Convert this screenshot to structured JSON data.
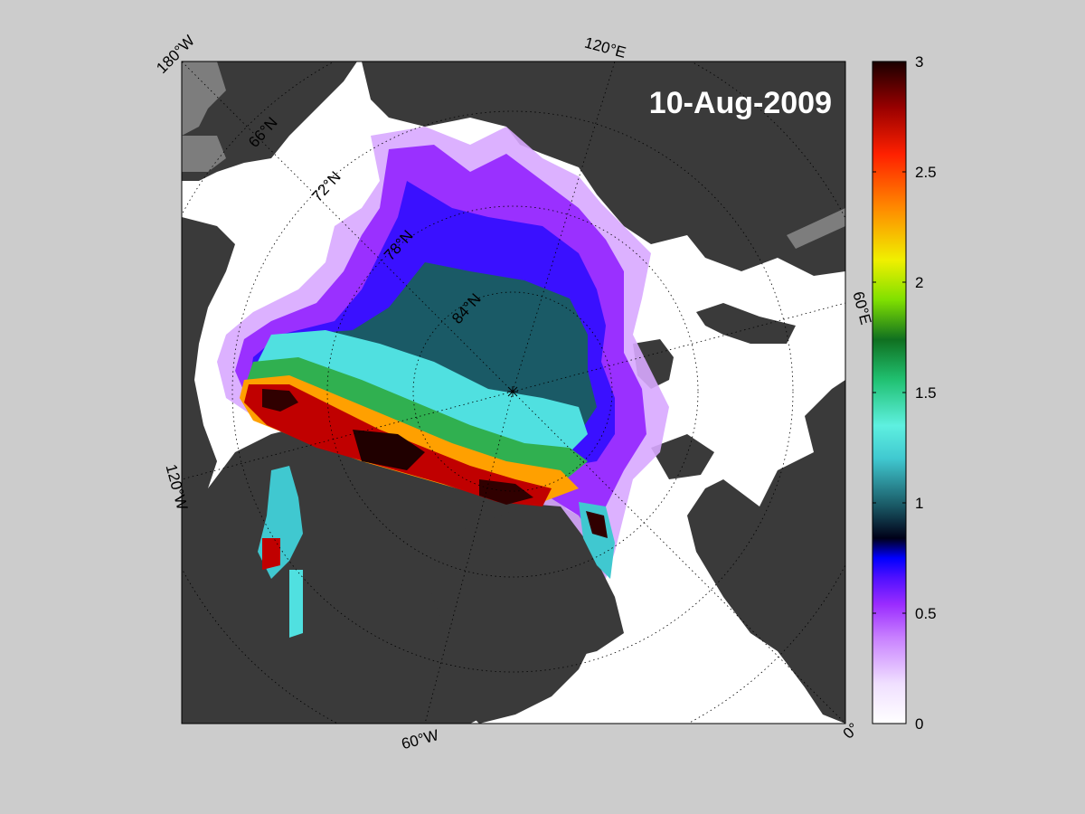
{
  "map": {
    "date_label": "10-Aug-2009",
    "projection": "polar stereographic (north)",
    "longitude_labels": [
      "180°W",
      "120°E",
      "60°E",
      "0°",
      "60°W",
      "120°W"
    ],
    "latitude_labels": [
      "66°N",
      "72°N",
      "78°N",
      "84°N"
    ],
    "colors": {
      "background": "#cccccc",
      "land": "#3a3a3a",
      "land_dim": "#7d7d7d",
      "ocean": "#ffffff",
      "frame": "#000000"
    }
  },
  "colorbar": {
    "ticks": [
      "0",
      "0.5",
      "1",
      "1.5",
      "2",
      "2.5",
      "3"
    ],
    "min": 0,
    "max": 3,
    "colormap": [
      "#ffffff",
      "#e8c8ff",
      "#b34dff",
      "#8a1cff",
      "#3a10ff",
      "#0000ff",
      "#000020",
      "#1a4a55",
      "#40c8d0",
      "#5ef0e0",
      "#20d080",
      "#108020",
      "#90e000",
      "#f0f000",
      "#ff9000",
      "#ff2000",
      "#a00000",
      "#200000"
    ]
  }
}
